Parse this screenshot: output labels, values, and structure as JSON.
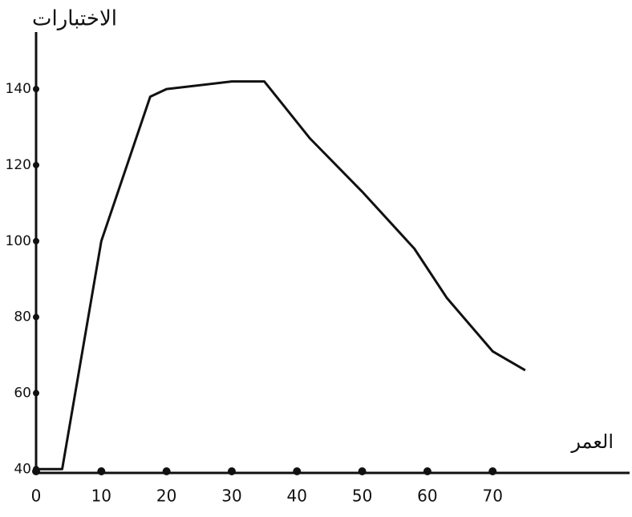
{
  "chart_data": {
    "type": "line",
    "x_label": "العمر",
    "y_label": "الاختبارات",
    "x": [
      0,
      4,
      10,
      17.5,
      20,
      30,
      35,
      42,
      50,
      58,
      63,
      70,
      75
    ],
    "series": [
      {
        "color": "#111111",
        "values": [
          40,
          40,
          100,
          138,
          140,
          142,
          142,
          127,
          113,
          98,
          85,
          71,
          66
        ]
      }
    ],
    "xlim": [
      0,
      91
    ],
    "xticks": [
      0,
      10,
      20,
      30,
      40,
      50,
      60,
      70
    ],
    "ylim": [
      39,
      155
    ],
    "yticks": [
      40,
      60,
      80,
      100,
      120,
      140
    ],
    "grid": false
  }
}
